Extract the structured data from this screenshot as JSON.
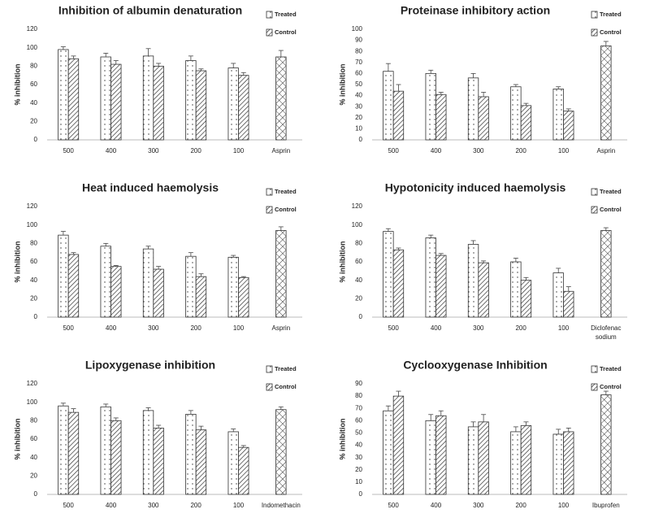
{
  "chart_data": [
    {
      "type": "bar",
      "title": "Inhibition of albumin denaturation",
      "y_label": "% inhibition",
      "categories": [
        "500",
        "400",
        "300",
        "200",
        "100",
        "Asprin"
      ],
      "series": [
        {
          "name": "Treated",
          "pattern": "dots",
          "values": [
            98,
            90,
            91,
            86,
            78,
            null
          ],
          "errors": [
            3,
            4,
            8,
            5,
            5,
            null
          ]
        },
        {
          "name": "Control",
          "pattern": "hatch",
          "values": [
            88,
            82,
            80,
            75,
            70,
            null
          ],
          "errors": [
            3,
            4,
            3,
            2,
            3,
            null
          ]
        },
        {
          "pattern": "cross",
          "values": [
            null,
            null,
            null,
            null,
            null,
            90
          ],
          "errors": [
            null,
            null,
            null,
            null,
            null,
            7
          ]
        }
      ],
      "ylim": [
        0,
        120
      ],
      "yticks": [
        0,
        20,
        40,
        60,
        80,
        100,
        120
      ]
    },
    {
      "type": "bar",
      "title": "Proteinase inhibitory action",
      "y_label": "% inhibition",
      "categories": [
        "500",
        "400",
        "300",
        "200",
        "100",
        "Asprin"
      ],
      "series": [
        {
          "name": "Treated",
          "pattern": "dots",
          "values": [
            62,
            60,
            56,
            48,
            46,
            null
          ],
          "errors": [
            7,
            3,
            4,
            2,
            2,
            null
          ]
        },
        {
          "name": "Control",
          "pattern": "hatch",
          "values": [
            44,
            41,
            39,
            31,
            26,
            null
          ],
          "errors": [
            6,
            2,
            4,
            2,
            2,
            null
          ]
        },
        {
          "pattern": "cross",
          "values": [
            null,
            null,
            null,
            null,
            null,
            85
          ],
          "errors": [
            null,
            null,
            null,
            null,
            null,
            4
          ]
        }
      ],
      "ylim": [
        0,
        100
      ],
      "yticks": [
        0,
        10,
        20,
        30,
        40,
        50,
        60,
        70,
        80,
        90,
        100
      ]
    },
    {
      "type": "bar",
      "title": "Heat induced haemolysis",
      "y_label": "% inhibition",
      "categories": [
        "500",
        "400",
        "300",
        "200",
        "100",
        "Asprin"
      ],
      "series": [
        {
          "name": "Treated",
          "pattern": "dots",
          "values": [
            89,
            77,
            74,
            66,
            65,
            null
          ],
          "errors": [
            4,
            3,
            3,
            4,
            2,
            null
          ]
        },
        {
          "name": "Control",
          "pattern": "hatch",
          "values": [
            68,
            55,
            52,
            44,
            43,
            null
          ],
          "errors": [
            2,
            1,
            3,
            3,
            1,
            null
          ]
        },
        {
          "pattern": "cross",
          "values": [
            null,
            null,
            null,
            null,
            null,
            94
          ],
          "errors": [
            null,
            null,
            null,
            null,
            null,
            4
          ]
        }
      ],
      "ylim": [
        0,
        120
      ],
      "yticks": [
        0,
        20,
        40,
        60,
        80,
        100,
        120
      ]
    },
    {
      "type": "bar",
      "title": "Hypotonicity induced haemolysis",
      "y_label": "% inhibition",
      "categories": [
        "500",
        "400",
        "300",
        "200",
        "100",
        "Diclofenac sodium"
      ],
      "series": [
        {
          "name": "Treated",
          "pattern": "dots",
          "values": [
            93,
            86,
            79,
            60,
            48,
            null
          ],
          "errors": [
            3,
            3,
            4,
            4,
            5,
            null
          ]
        },
        {
          "name": "Control",
          "pattern": "hatch",
          "values": [
            73,
            67,
            59,
            40,
            28,
            null
          ],
          "errors": [
            2,
            2,
            2,
            3,
            5,
            null
          ]
        },
        {
          "pattern": "cross",
          "values": [
            null,
            null,
            null,
            null,
            null,
            94
          ],
          "errors": [
            null,
            null,
            null,
            null,
            null,
            3
          ]
        }
      ],
      "ylim": [
        0,
        120
      ],
      "yticks": [
        0,
        20,
        40,
        60,
        80,
        100,
        120
      ]
    },
    {
      "type": "bar",
      "title": "Lipoxygenase inhibition",
      "y_label": "% inhibition",
      "categories": [
        "500",
        "400",
        "300",
        "200",
        "100",
        "Indomethacin"
      ],
      "series": [
        {
          "name": "Treated",
          "pattern": "dots",
          "values": [
            96,
            95,
            91,
            87,
            68,
            null
          ],
          "errors": [
            3,
            3,
            3,
            4,
            3,
            null
          ]
        },
        {
          "name": "Control",
          "pattern": "hatch",
          "values": [
            89,
            80,
            72,
            70,
            51,
            null
          ],
          "errors": [
            4,
            3,
            3,
            4,
            2,
            null
          ]
        },
        {
          "pattern": "cross",
          "values": [
            null,
            null,
            null,
            null,
            null,
            92
          ],
          "errors": [
            null,
            null,
            null,
            null,
            null,
            3
          ]
        }
      ],
      "ylim": [
        0,
        120
      ],
      "yticks": [
        0,
        20,
        40,
        60,
        80,
        100,
        120
      ]
    },
    {
      "type": "bar",
      "title": "Cyclooxygenase Inhibition",
      "y_label": "% inhibition",
      "categories": [
        "500",
        "400",
        "300",
        "200",
        "100",
        "Ibuprofen"
      ],
      "series": [
        {
          "name": "Treated",
          "pattern": "dots",
          "values": [
            68,
            60,
            55,
            51,
            49,
            null
          ],
          "errors": [
            4,
            5,
            4,
            4,
            4,
            null
          ]
        },
        {
          "name": "Control",
          "pattern": "hatch",
          "values": [
            80,
            64,
            59,
            56,
            51,
            null
          ],
          "errors": [
            4,
            4,
            6,
            3,
            3,
            null
          ]
        },
        {
          "pattern": "cross",
          "values": [
            null,
            null,
            null,
            null,
            null,
            81
          ],
          "errors": [
            null,
            null,
            null,
            null,
            null,
            3
          ]
        }
      ],
      "ylim": [
        0,
        90
      ],
      "yticks": [
        0,
        10,
        20,
        30,
        40,
        50,
        60,
        70,
        80,
        90
      ]
    }
  ]
}
